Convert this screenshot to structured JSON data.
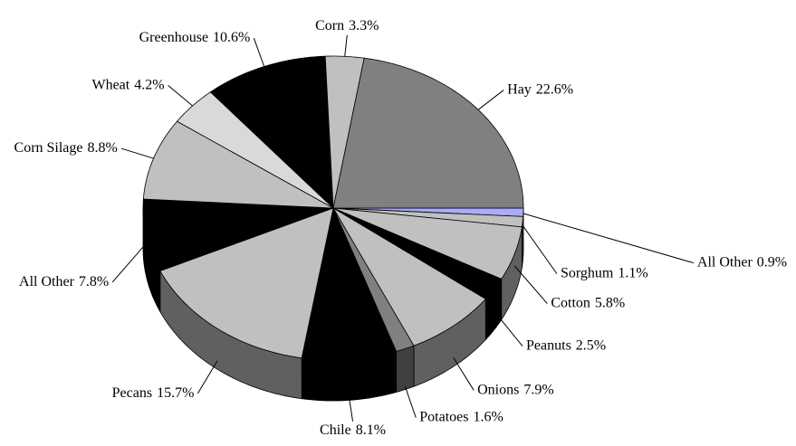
{
  "chart_data": {
    "type": "pie",
    "categories": [
      "All Other",
      "Sorghum",
      "Cotton",
      "Peanuts",
      "Onions",
      "Potatoes",
      "Chile",
      "Pecans",
      "All Other",
      "Corn Silage",
      "Wheat",
      "Greenhouse",
      "Corn",
      "Hay"
    ],
    "values": [
      0.9,
      1.1,
      5.8,
      2.5,
      7.9,
      1.6,
      8.1,
      15.7,
      7.8,
      8.8,
      4.2,
      10.6,
      3.3,
      22.6
    ],
    "value_labels": [
      "0.9%",
      "1.1%",
      "5.8%",
      "2.5%",
      "7.9%",
      "1.6%",
      "8.1%",
      "15.7%",
      "7.8%",
      "8.8%",
      "4.2%",
      "10.6%",
      "3.3%",
      "22.6%"
    ],
    "colors": [
      "#aaaaff",
      "#c0c0c0",
      "#c0c0c0",
      "#000000",
      "#c0c0c0",
      "#808080",
      "#000000",
      "#c0c0c0",
      "#000000",
      "#c0c0c0",
      "#d9d9d9",
      "#000000",
      "#c0c0c0",
      "#808080"
    ]
  }
}
